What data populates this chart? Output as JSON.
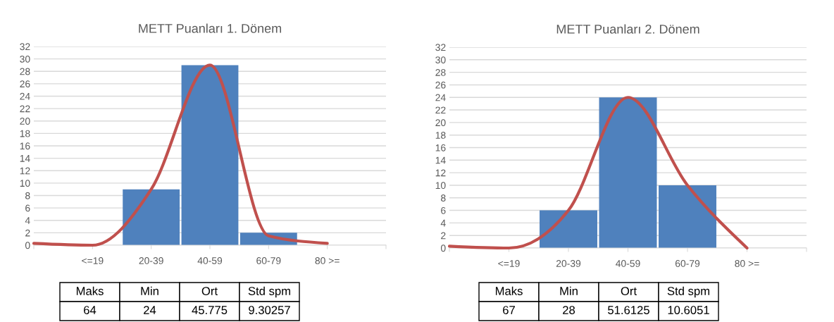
{
  "chart_data": [
    {
      "type": "bar",
      "title": "METT Puanları 1. Dönem",
      "categories": [
        null,
        "<=19",
        "20-39",
        "40-59",
        "60-79",
        "80 >=",
        null
      ],
      "series": [
        {
          "color": "#4f81bd",
          "values": [
            null,
            0,
            9,
            29,
            2,
            0,
            null
          ]
        },
        {
          "type": "line",
          "color": "#c0504d",
          "values": [
            0.3,
            0,
            9,
            29,
            1.5,
            0.3,
            null
          ]
        }
      ],
      "ylim": [
        0,
        32
      ],
      "yticks": [
        0,
        2,
        4,
        6,
        8,
        10,
        12,
        14,
        16,
        18,
        20,
        22,
        24,
        26,
        28,
        30,
        32
      ],
      "grid": "y",
      "annotations": [
        "Maks",
        "Min",
        "Ort",
        "Std spm",
        "64",
        "24",
        "45.775",
        "9.30257"
      ]
    },
    {
      "type": "bar",
      "title": "METT Puanları 2. Dönem",
      "categories": [
        null,
        "<=19",
        "20-39",
        "40-59",
        "60-79",
        "80 >=",
        null
      ],
      "series": [
        {
          "color": "#4f81bd",
          "values": [
            null,
            0,
            6,
            24,
            10,
            0,
            null
          ]
        },
        {
          "type": "line",
          "color": "#c0504d",
          "values": [
            0.3,
            0,
            6,
            24,
            10,
            0,
            null
          ]
        }
      ],
      "ylim": [
        0,
        32
      ],
      "yticks": [
        0,
        2,
        4,
        6,
        8,
        10,
        12,
        14,
        16,
        18,
        20,
        22,
        24,
        26,
        28,
        30,
        32
      ],
      "grid": "y",
      "annotations": [
        "Maks",
        "Min",
        "Ort",
        "Std spm",
        "67",
        "28",
        "51.6125",
        "10.6051"
      ]
    }
  ]
}
